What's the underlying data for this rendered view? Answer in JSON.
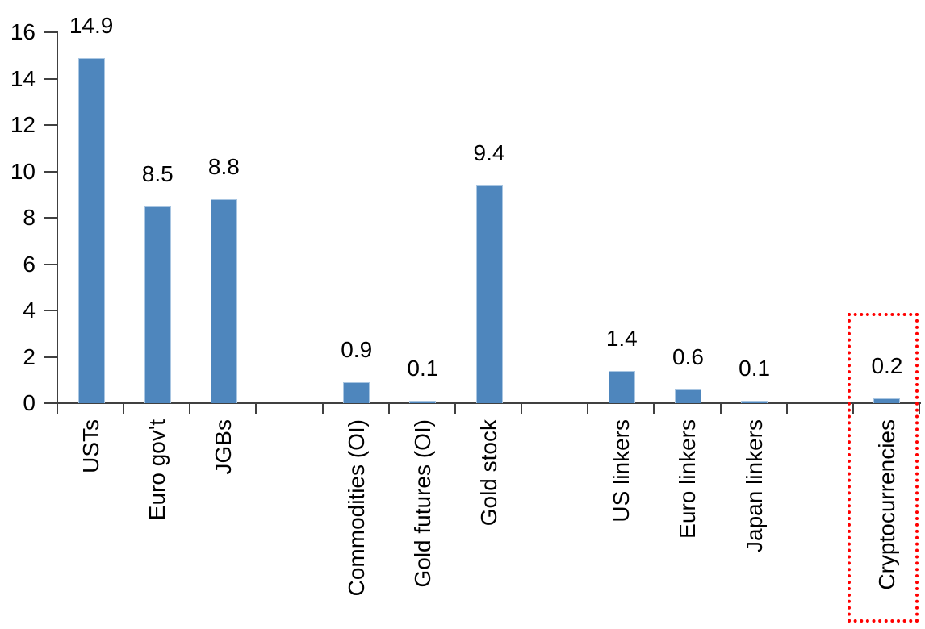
{
  "chart_data": {
    "type": "bar",
    "title": "",
    "xlabel": "",
    "ylabel": "",
    "categories": [
      "USTs",
      "Euro gov't",
      "JGBs",
      "Commodities (OI)",
      "Gold futures (OI)",
      "Gold stock",
      "US linkers",
      "Euro linkers",
      "Japan linkers",
      "Cryptocurrencies"
    ],
    "values": [
      14.9,
      8.5,
      8.8,
      0.9,
      0.1,
      9.4,
      1.4,
      0.6,
      0.1,
      0.2
    ],
    "data_labels": [
      "14.9",
      "8.5",
      "8.8",
      "0.9",
      "0.1",
      "9.4",
      "1.4",
      "0.6",
      "0.1",
      "0.2"
    ],
    "slot_indices": [
      0,
      1,
      2,
      4,
      5,
      6,
      8,
      9,
      10,
      12
    ],
    "total_slots": 13,
    "ylim": [
      0,
      16
    ],
    "yticks": [
      0,
      2,
      4,
      6,
      8,
      10,
      12,
      14,
      16
    ],
    "grid": false,
    "legend": "none",
    "bar_color": "#4E86BD",
    "bar_border_color": "#A9C6E2",
    "axis_color": "#404040",
    "text_color": "#000000",
    "x_labels_rotation_deg": 90,
    "highlight": {
      "category": "Cryptocurrencies",
      "style": "red-dotted-box",
      "color": "#FF0000"
    }
  }
}
